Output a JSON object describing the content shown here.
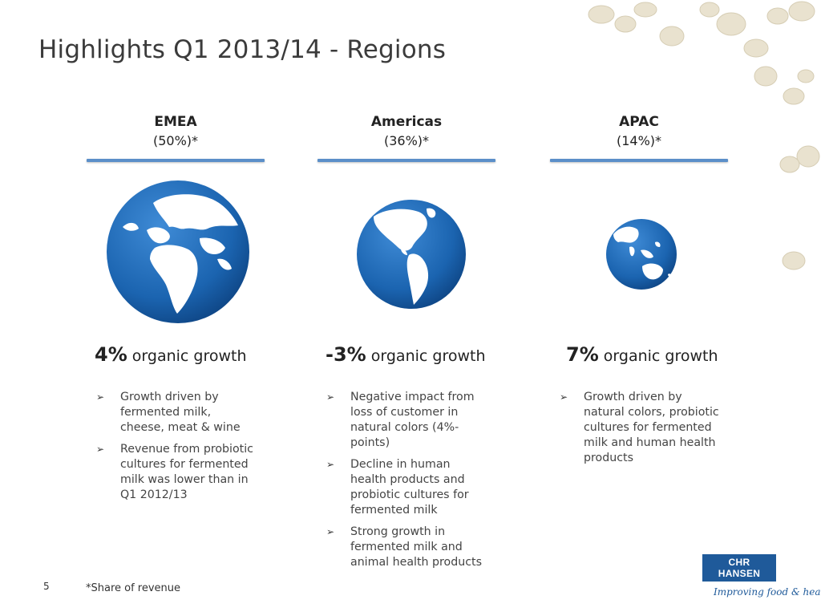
{
  "slide": {
    "title": "Highlights Q1 2013/14 - Regions",
    "page_number": "5",
    "footnote": "*Share of revenue"
  },
  "regions": [
    {
      "name": "EMEA",
      "share": "(50%)*",
      "growth_value": "4%",
      "growth_label": "organic growth",
      "bullets": [
        "Growth driven by fermented milk, cheese, meat & wine",
        "Revenue from probiotic cultures for fermented milk was lower than in Q1 2012/13"
      ]
    },
    {
      "name": "Americas",
      "share": "(36%)*",
      "growth_value": "-3%",
      "growth_label": "organic growth",
      "bullets": [
        "Negative impact from loss of customer in natural colors (4%-points)",
        "Decline in human health products and probiotic cultures for fermented milk",
        "Strong growth in fermented milk and animal health products"
      ]
    },
    {
      "name": "APAC",
      "share": "(14%)*",
      "growth_value": "7%",
      "growth_label": "organic growth",
      "bullets": [
        "Growth driven by natural colors, probiotic cultures for fermented milk and human health products"
      ]
    }
  ],
  "logo": {
    "brand": "CHR HANSEN",
    "tagline": "Improving food & health"
  },
  "icons": {
    "bullet": "arrow-bullet-icon",
    "globe_emea": "globe-emea-icon",
    "globe_americas": "globe-americas-icon",
    "globe_apac": "globe-apac-icon"
  },
  "colors": {
    "accent_blue": "#1f5a9a",
    "rule_blue": "#5b8fc9",
    "globe_blue": "#1b64b0"
  }
}
